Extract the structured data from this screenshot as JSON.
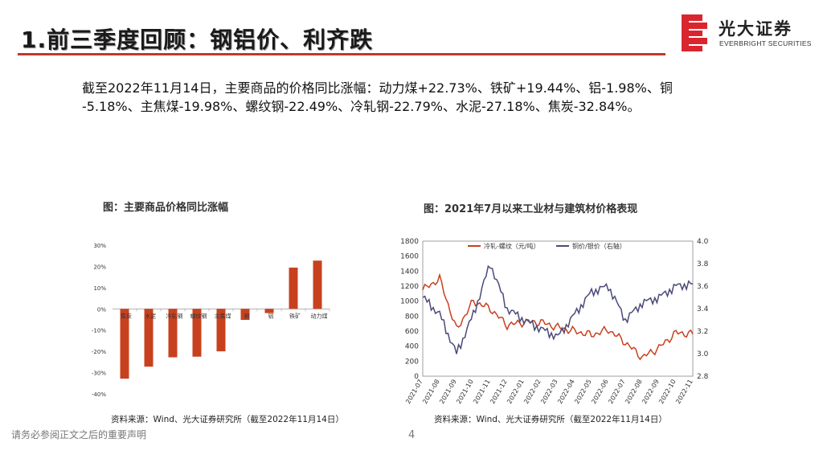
{
  "slide": {
    "title": "1.前三季度回顾：钢铝价、利齐跌",
    "paragraph": "截至2022年11月14日，主要商品的价格同比涨幅：动力煤+22.73%、铁矿+19.44%、铝-1.98%、铜      -5.18%、主焦煤-19.98%、螺纹钢-22.49%、冷轧钢-22.79%、水泥-27.18%、焦炭-32.84%。",
    "footer": "请务必参阅正文之后的重要声明",
    "page_number": "4"
  },
  "logo": {
    "cn": "光大证券",
    "en": "EVERBRIGHT SECURITIES",
    "color": "#d9262e",
    "icon": "everbright-logo-icon"
  },
  "charts": {
    "left": {
      "title": "图：主要商品价格同比涨幅",
      "source": "资料来源：Wind、光大证券研究所（截至2022年11月14日）"
    },
    "right": {
      "title": "图：2021年7月以来工业材与建筑材价格表现",
      "source": "资料来源：Wind、光大证券研究所（截至2022年11月14日）"
    }
  },
  "chart_data": [
    {
      "type": "bar",
      "title": "图：主要商品价格同比涨幅",
      "categories": [
        "焦炭",
        "水泥",
        "冷轧钢",
        "螺纹钢",
        "主焦煤",
        "铜",
        "铝",
        "铁矿",
        "动力煤"
      ],
      "values": [
        -32.84,
        -27.18,
        -22.79,
        -22.49,
        -19.98,
        -5.18,
        -1.98,
        19.44,
        22.73
      ],
      "ylim": [
        -40,
        30
      ],
      "yticks": [
        "30%",
        "20%",
        "10%",
        "0%",
        "-10%",
        "-20%",
        "-30%",
        "-40%"
      ],
      "color": "#c8411f",
      "grid": false
    },
    {
      "type": "line",
      "title": "图：2021年7月以来工业材与建筑材价格表现",
      "x": [
        "2021-07",
        "2021-08",
        "2021-09",
        "2021-10",
        "2021-11",
        "2021-12",
        "2022-01",
        "2022-02",
        "2022-03",
        "2022-04",
        "2022-05",
        "2022-06",
        "2022-07",
        "2022-08",
        "2022-09",
        "2022-10",
        "2022-11"
      ],
      "ylim_left": [
        0,
        1800
      ],
      "yticks_left": [
        "0",
        "200",
        "400",
        "600",
        "800",
        "1000",
        "1200",
        "1400",
        "1600",
        "1800"
      ],
      "ylim_right": [
        2.8,
        4.0
      ],
      "yticks_right": [
        "2.8",
        "3.0",
        "3.2",
        "3.4",
        "3.6",
        "3.8",
        "4.0"
      ],
      "legend_position": "top",
      "series": [
        {
          "name": "冷轧-螺纹（元/吨）",
          "axis": "left",
          "color": "#c8411f",
          "values": [
            1150,
            1300,
            620,
            1000,
            900,
            680,
            720,
            720,
            650,
            600,
            550,
            620,
            450,
            250,
            380,
            580,
            560
          ]
        },
        {
          "name": "铜价/银价（右轴）",
          "axis": "right",
          "color": "#4a4a7a",
          "values": [
            3.5,
            3.35,
            3.0,
            3.35,
            3.8,
            3.4,
            3.3,
            3.22,
            3.15,
            3.35,
            3.55,
            3.6,
            3.3,
            3.45,
            3.5,
            3.6,
            3.62
          ]
        }
      ]
    }
  ]
}
